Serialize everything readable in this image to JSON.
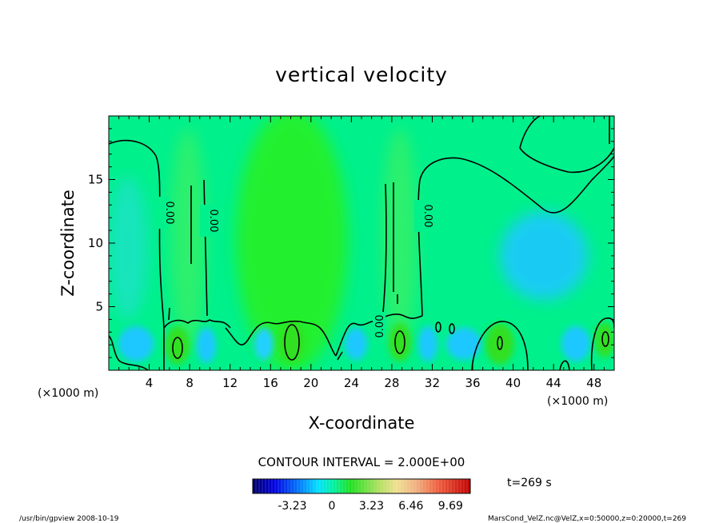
{
  "chart_data": {
    "type": "heatmap",
    "title": "vertical velocity",
    "xlabel": "X-coordinate",
    "ylabel": "Z-coordinate",
    "x_unit": "(×1000 m)",
    "xlim": [
      0,
      50
    ],
    "ylim": [
      0,
      20
    ],
    "x_ticks": [
      4,
      8,
      12,
      16,
      20,
      24,
      28,
      32,
      36,
      40,
      44,
      48
    ],
    "y_ticks": [
      5,
      10,
      15
    ],
    "contour_interval_text": "CONTOUR INTERVAL = 2.000E+00",
    "contour_labels": [
      "0.00",
      "0.00",
      "0.00",
      "0.00"
    ],
    "colorbar": {
      "tick_labels": [
        "-3.23",
        "0",
        "3.23",
        "6.46",
        "9.69"
      ],
      "tick_values": [
        -3.23,
        0,
        3.23,
        6.46,
        9.69
      ],
      "range": [
        -6.46,
        11.3
      ]
    },
    "time_label": "t=269 s",
    "grid": false,
    "legend": "bottom-center"
  },
  "footer": {
    "left": "/usr/bin/gpview   2008-10-19",
    "right": "MarsCond_VelZ.nc@VelZ,x=0:50000,z=0:20000,t=269"
  },
  "colors": {
    "background_field": "#00f08c",
    "updraft": "#28f028",
    "downdraft": "#1ec8ff",
    "contour": "#000000"
  }
}
